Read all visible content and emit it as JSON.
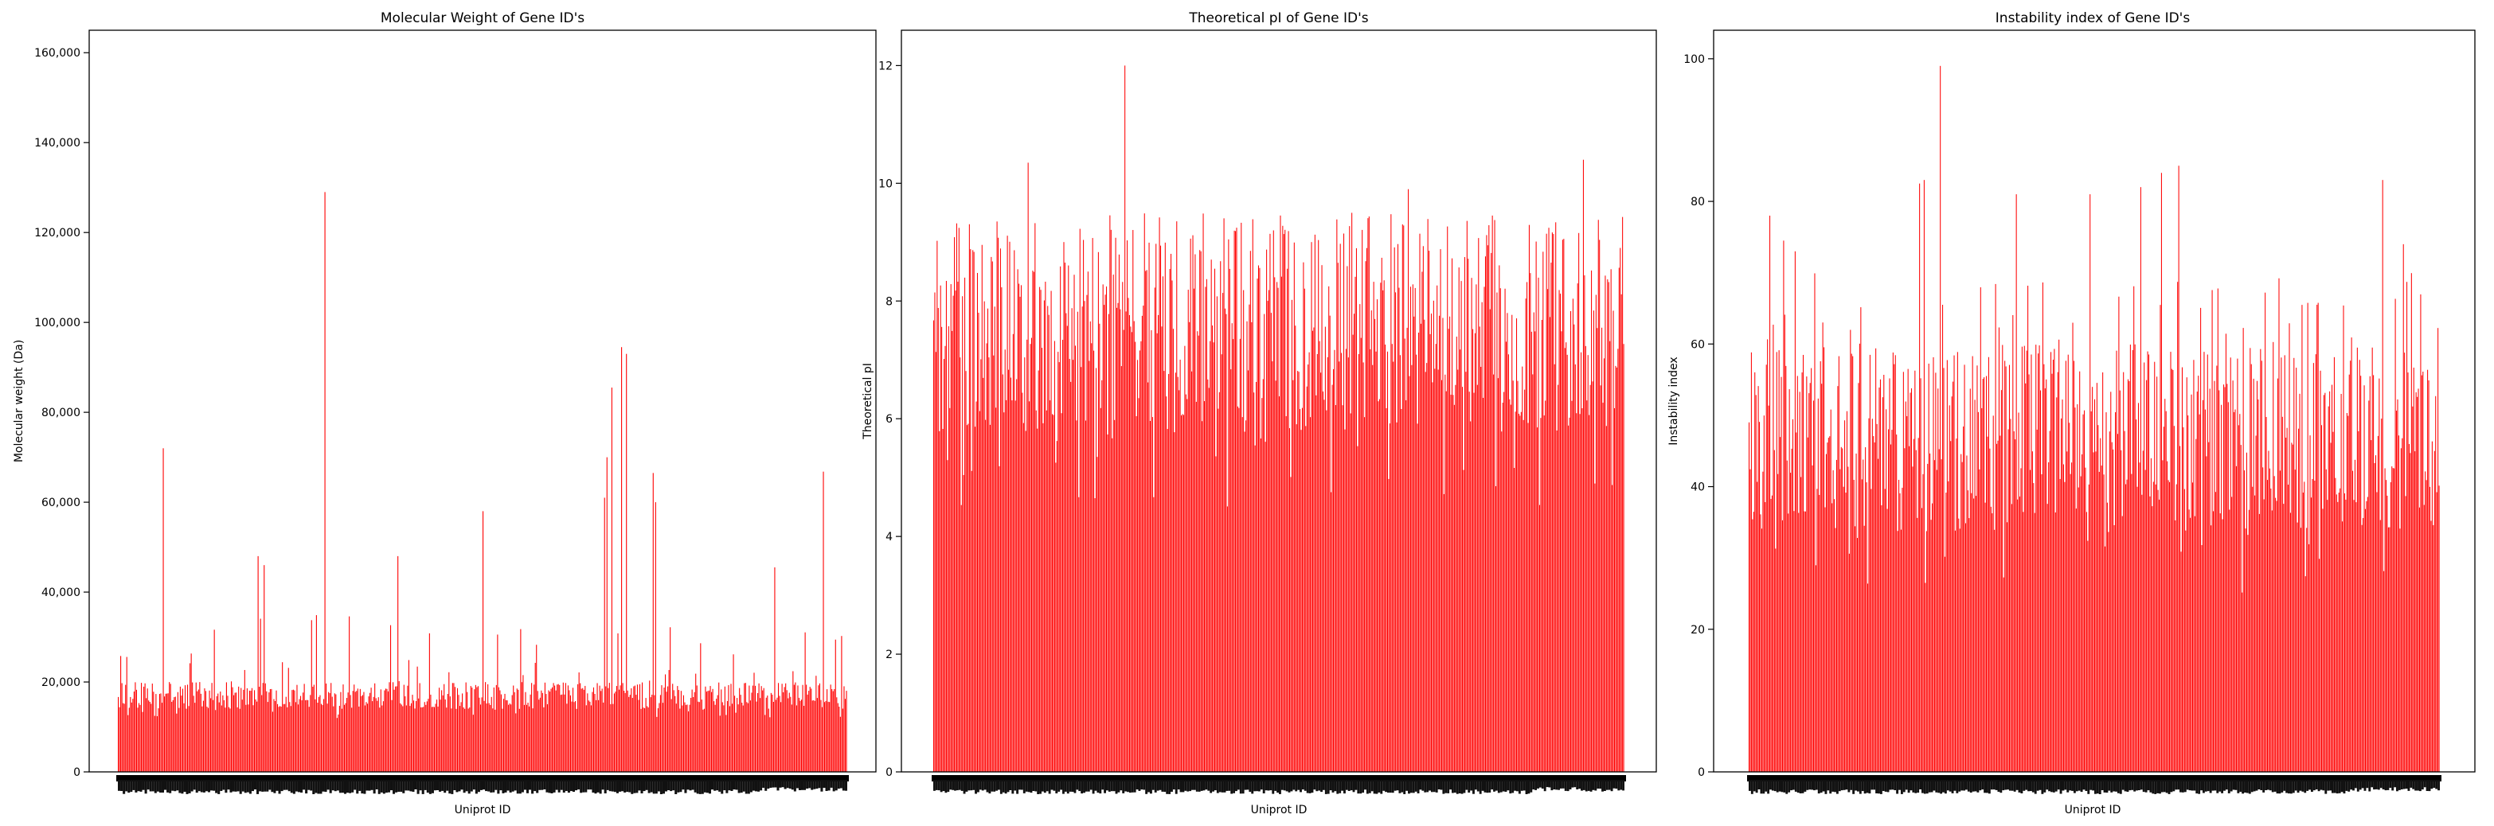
{
  "chart_data": [
    {
      "type": "bar",
      "title": "Molecular Weight of Gene ID's",
      "xlabel": "Uniprot ID",
      "ylabel": "Molecular weight (Da)",
      "ylim": [
        0,
        165000
      ],
      "yticks": [
        0,
        20000,
        40000,
        60000,
        80000,
        100000,
        120000,
        140000,
        160000
      ],
      "ytick_labels": [
        "0",
        "20,000",
        "40,000",
        "60,000",
        "80,000",
        "100,000",
        "120,000",
        "140,000",
        "160,000"
      ],
      "bar_color": "#ff0000",
      "n_bars": 600,
      "typical_range": [
        12000,
        20000
      ],
      "notable_values": [
        {
          "index": 37,
          "value": 72000
        },
        {
          "index": 170,
          "value": 129000
        },
        {
          "index": 300,
          "value": 58000
        },
        {
          "index": 400,
          "value": 61000
        },
        {
          "index": 402,
          "value": 70000
        },
        {
          "index": 406,
          "value": 85500
        },
        {
          "index": 414,
          "value": 94500
        },
        {
          "index": 418,
          "value": 93000
        },
        {
          "index": 440,
          "value": 66500
        },
        {
          "index": 442,
          "value": 60000
        },
        {
          "index": 580,
          "value": 66800
        },
        {
          "index": 540,
          "value": 45500
        },
        {
          "index": 115,
          "value": 48000
        },
        {
          "index": 120,
          "value": 46000
        },
        {
          "index": 230,
          "value": 48000
        }
      ]
    },
    {
      "type": "bar",
      "title": "Theoretical pI of Gene ID's",
      "xlabel": "Uniprot ID",
      "ylabel": "Theoretical pI",
      "ylim": [
        0,
        12.6
      ],
      "yticks": [
        0,
        2,
        4,
        6,
        8,
        10,
        12
      ],
      "ytick_labels": [
        "0",
        "2",
        "4",
        "6",
        "8",
        "10",
        "12"
      ],
      "bar_color": "#ff0000",
      "n_bars": 600,
      "typical_range": [
        4.5,
        9.5
      ],
      "notable_values": [
        {
          "index": 166,
          "value": 12.0
        },
        {
          "index": 82,
          "value": 10.35
        },
        {
          "index": 564,
          "value": 10.4
        },
        {
          "index": 412,
          "value": 9.9
        }
      ]
    },
    {
      "type": "bar",
      "title": "Instability index of Gene ID's",
      "xlabel": "Uniprot ID",
      "ylabel": "Instability index",
      "ylim": [
        0,
        104
      ],
      "yticks": [
        0,
        20,
        40,
        60,
        80,
        100
      ],
      "ytick_labels": [
        "0",
        "20",
        "40",
        "60",
        "80",
        "100"
      ],
      "bar_color": "#ff0000",
      "n_bars": 600,
      "typical_range": [
        25,
        60
      ],
      "notable_values": [
        {
          "index": 166,
          "value": 99.0
        },
        {
          "index": 152,
          "value": 83.0
        },
        {
          "index": 148,
          "value": 82.5
        },
        {
          "index": 18,
          "value": 78.0
        },
        {
          "index": 373,
          "value": 85.0
        },
        {
          "index": 550,
          "value": 83.0
        },
        {
          "index": 296,
          "value": 81.0
        },
        {
          "index": 358,
          "value": 84.0
        },
        {
          "index": 340,
          "value": 82.0
        },
        {
          "index": 232,
          "value": 81.0
        },
        {
          "index": 568,
          "value": 74.0
        },
        {
          "index": 30,
          "value": 74.5
        },
        {
          "index": 40,
          "value": 73.0
        }
      ]
    }
  ]
}
